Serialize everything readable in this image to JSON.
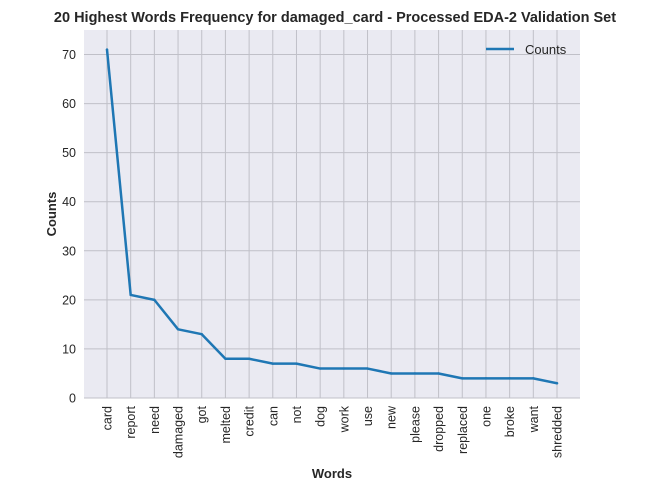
{
  "chart_data": {
    "type": "line",
    "title": "20 Highest Words Frequency for damaged_card - Processed EDA-2 Validation Set",
    "xlabel": "Words",
    "ylabel": "Counts",
    "categories": [
      "card",
      "report",
      "need",
      "damaged",
      "got",
      "melted",
      "credit",
      "can",
      "not",
      "dog",
      "work",
      "use",
      "new",
      "please",
      "dropped",
      "replaced",
      "one",
      "broke",
      "want",
      "shredded"
    ],
    "series": [
      {
        "name": "Counts",
        "values": [
          71,
          21,
          20,
          14,
          13,
          8,
          8,
          7,
          7,
          6,
          6,
          6,
          5,
          5,
          5,
          4,
          4,
          4,
          4,
          3
        ],
        "color": "#1f77b4"
      }
    ],
    "ylim": [
      0,
      75
    ],
    "yticks": [
      0,
      10,
      20,
      30,
      40,
      50,
      60,
      70
    ],
    "grid": true,
    "legend": "top-right",
    "colors": {
      "plot_background": "#eaeaf2",
      "grid": "#c0c0c8",
      "line": "#1f77b4",
      "text": "#262626"
    }
  }
}
